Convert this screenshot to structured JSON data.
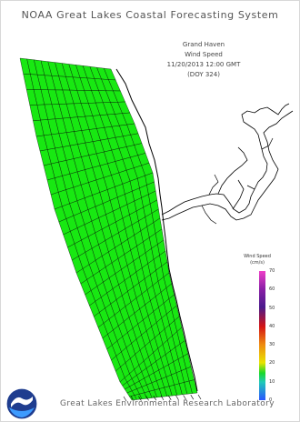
{
  "header": {
    "title": "NOAA Great Lakes Coastal Forecasting System"
  },
  "info": {
    "location": "Grand Haven",
    "variable": "Wind Speed",
    "datetime": "11/20/2013 12:00 GMT",
    "day_of_year": "(DOY 324)"
  },
  "legend": {
    "title_line1": "Wind Speed",
    "title_line2": "(cm/s)",
    "ticks": [
      "70",
      "60",
      "50",
      "40",
      "30",
      "20",
      "10",
      "0"
    ],
    "range": [
      0,
      70
    ]
  },
  "map": {
    "grid_fill_color": "#18e812",
    "grid_line_color": "#000000",
    "coastline_color": "#000000"
  },
  "footer": {
    "text": "Great Lakes Environmental Research Laboratory",
    "logo_icon": "noaa-logo-icon"
  }
}
